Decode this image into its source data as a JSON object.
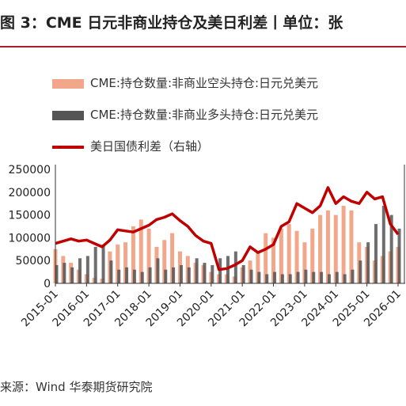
{
  "figure": {
    "title": "图 3：CME 日元非商业持仓及美日利差丨单位：张",
    "source": "来源：Wind 华泰期货研究院"
  },
  "chart_data": {
    "type": "bar+line",
    "x_ticks": [
      "2015-01",
      "2016-01",
      "2017-01",
      "2018-01",
      "2019-01",
      "2020-01",
      "2021-01",
      "2022-01",
      "2023-01",
      "2024-01",
      "2025-01",
      "2026-01"
    ],
    "y_left_ticks": [
      "250000",
      "200000",
      "150000",
      "100000",
      "50000",
      "0"
    ],
    "y_left_range": [
      0,
      250000
    ],
    "right_axis_range": [
      0,
      5
    ],
    "legend_position": "top-left",
    "colors": {
      "short": "#f2a78a",
      "long": "#555555",
      "spread": "#c00000",
      "title_rule": "#a31f2b"
    },
    "series": [
      {
        "name": "CME:持仓数量:非商业空头持仓:日元兑美元",
        "kind": "bar",
        "axis": "left",
        "dates": [
          "2015-01",
          "2015-04",
          "2015-07",
          "2015-10",
          "2016-01",
          "2016-04",
          "2016-07",
          "2016-10",
          "2017-01",
          "2017-04",
          "2017-07",
          "2017-10",
          "2018-01",
          "2018-04",
          "2018-07",
          "2018-10",
          "2019-01",
          "2019-04",
          "2019-07",
          "2019-10",
          "2020-01",
          "2020-04",
          "2020-07",
          "2020-10",
          "2021-01",
          "2021-04",
          "2021-07",
          "2021-10",
          "2022-01",
          "2022-04",
          "2022-07",
          "2022-10",
          "2023-01",
          "2023-04",
          "2023-07",
          "2023-10",
          "2024-01",
          "2024-04",
          "2024-07",
          "2024-10",
          "2025-01",
          "2025-04",
          "2025-07",
          "2025-10",
          "2026-01"
        ],
        "values": [
          75000,
          60000,
          45000,
          30000,
          20000,
          12000,
          10000,
          70000,
          85000,
          90000,
          125000,
          140000,
          120000,
          80000,
          95000,
          110000,
          70000,
          60000,
          45000,
          40000,
          25000,
          20000,
          20000,
          15000,
          35000,
          50000,
          70000,
          110000,
          100000,
          120000,
          130000,
          115000,
          90000,
          120000,
          150000,
          160000,
          150000,
          170000,
          160000,
          90000,
          80000,
          50000,
          60000,
          70000,
          80000
        ]
      },
      {
        "name": "CME:持仓数量:非商业多头持仓:日元兑美元",
        "kind": "bar",
        "axis": "left",
        "dates": [
          "2015-01",
          "2015-04",
          "2015-07",
          "2015-10",
          "2016-01",
          "2016-04",
          "2016-07",
          "2016-10",
          "2017-01",
          "2017-04",
          "2017-07",
          "2017-10",
          "2018-01",
          "2018-04",
          "2018-07",
          "2018-10",
          "2019-01",
          "2019-04",
          "2019-07",
          "2019-10",
          "2020-01",
          "2020-04",
          "2020-07",
          "2020-10",
          "2021-01",
          "2021-04",
          "2021-07",
          "2021-10",
          "2022-01",
          "2022-04",
          "2022-07",
          "2022-10",
          "2023-01",
          "2023-04",
          "2023-07",
          "2023-10",
          "2024-01",
          "2024-04",
          "2024-07",
          "2024-10",
          "2025-01",
          "2025-04",
          "2025-07",
          "2025-10",
          "2026-01"
        ],
        "values": [
          40000,
          45000,
          35000,
          55000,
          60000,
          80000,
          85000,
          50000,
          30000,
          35000,
          30000,
          25000,
          35000,
          55000,
          30000,
          35000,
          40000,
          35000,
          55000,
          45000,
          40000,
          55000,
          60000,
          70000,
          40000,
          30000,
          25000,
          20000,
          25000,
          20000,
          20000,
          25000,
          30000,
          25000,
          25000,
          20000,
          25000,
          20000,
          30000,
          50000,
          90000,
          130000,
          170000,
          150000,
          120000
        ]
      },
      {
        "name": "美日国债利差（右轴）",
        "kind": "line",
        "axis": "right",
        "dates": [
          "2015-01",
          "2015-04",
          "2015-07",
          "2015-10",
          "2016-01",
          "2016-04",
          "2016-07",
          "2016-10",
          "2017-01",
          "2017-04",
          "2017-07",
          "2017-10",
          "2018-01",
          "2018-04",
          "2018-07",
          "2018-10",
          "2019-01",
          "2019-04",
          "2019-07",
          "2019-10",
          "2020-01",
          "2020-04",
          "2020-07",
          "2020-10",
          "2021-01",
          "2021-04",
          "2021-07",
          "2021-10",
          "2022-01",
          "2022-04",
          "2022-07",
          "2022-10",
          "2023-01",
          "2023-04",
          "2023-07",
          "2023-10",
          "2024-01",
          "2024-04",
          "2024-07",
          "2024-10",
          "2025-01",
          "2025-04",
          "2025-07",
          "2025-10",
          "2026-01"
        ],
        "values": [
          1.75,
          1.85,
          1.95,
          1.85,
          1.9,
          1.75,
          1.6,
          1.9,
          2.35,
          2.3,
          2.25,
          2.4,
          2.55,
          2.8,
          2.9,
          3.05,
          2.75,
          2.5,
          2.1,
          1.85,
          1.75,
          0.6,
          0.65,
          0.8,
          1.0,
          1.6,
          1.35,
          1.5,
          1.7,
          2.5,
          2.7,
          3.5,
          3.3,
          3.1,
          3.4,
          4.2,
          3.5,
          3.8,
          3.6,
          3.5,
          4.0,
          3.7,
          3.8,
          2.6,
          2.15
        ]
      }
    ]
  }
}
